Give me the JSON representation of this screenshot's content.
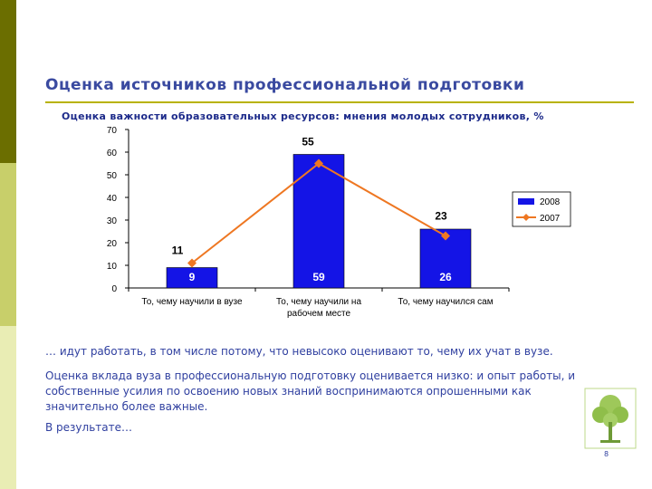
{
  "title": "Оценка источников профессиональной подготовки",
  "subtitle": "Оценка важности образовательных ресурсов: мнения молодых сотрудников, %",
  "paragraph1": "… идут работать, в том числе потому, что невысоко оценивают то, чему их учат в вузе.",
  "paragraph2": "Оценка вклада вуза в профессиональную подготовку оценивается низко: и опыт работы, и собственные усилия по освоению новых знаний воспринимаются опрошенными как значительно более важные.",
  "paragraph3": "В результате…",
  "page_number": "8",
  "colors": {
    "bar": "#1414e6",
    "line": "#ee7722",
    "title": "#3a4aa0",
    "stripe_dark": "#6b6e00"
  },
  "chart_data": {
    "type": "bar",
    "categories": [
      [
        "То, чему научили в вузе"
      ],
      [
        "То, чему научили на",
        "рабочем месте"
      ],
      [
        "То, чему научился сам"
      ]
    ],
    "ylim": [
      0,
      70
    ],
    "yticks": [
      0,
      10,
      20,
      30,
      40,
      50,
      60,
      70
    ],
    "grid": false,
    "legend_position": "right",
    "series": [
      {
        "name": "2008",
        "type": "bar",
        "values": [
          9,
          59,
          26
        ],
        "labels": [
          "9",
          "59",
          "26"
        ]
      },
      {
        "name": "2007",
        "type": "line",
        "values": [
          11,
          55,
          23
        ],
        "labels": [
          "11",
          "55",
          "23"
        ]
      }
    ]
  }
}
